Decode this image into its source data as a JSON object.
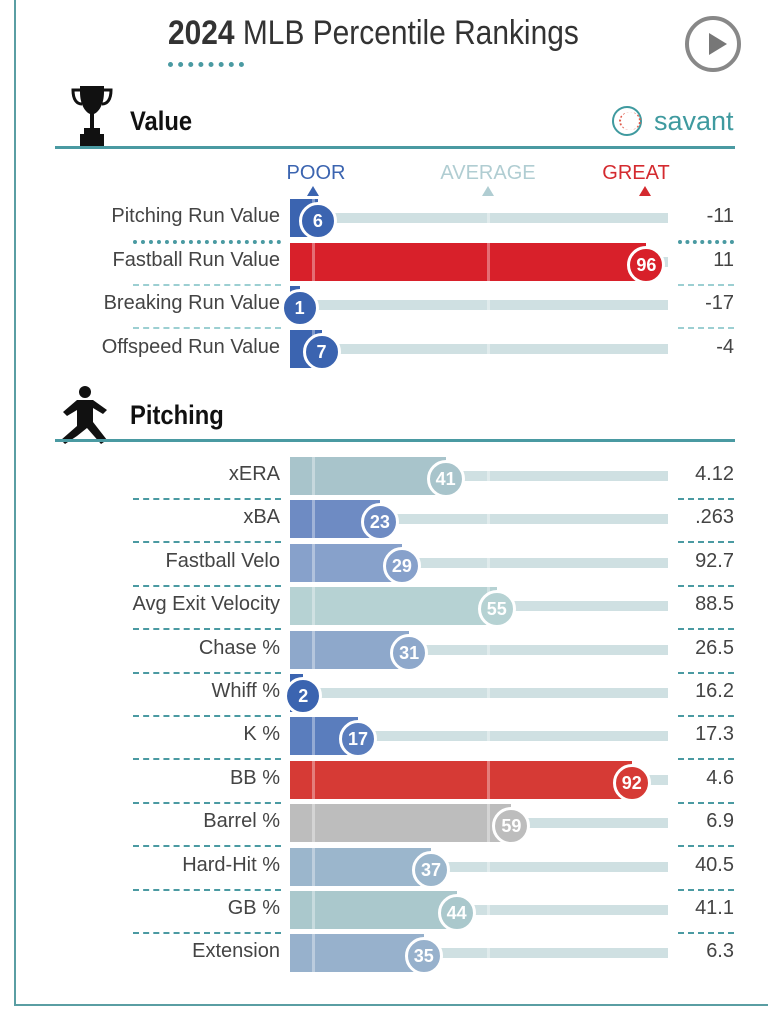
{
  "header": {
    "year": "2024",
    "title": "MLB Percentile Rankings"
  },
  "brand": "savant",
  "scale": {
    "poor": "POOR",
    "average": "AVERAGE",
    "great": "GREAT",
    "poor_color": "#3b64b0",
    "average_color": "#b0cdd2",
    "great_color": "#d42a2f"
  },
  "chart_data": [
    {
      "type": "bar",
      "title": "Value",
      "xlim": [
        0,
        100
      ],
      "rows": [
        {
          "label": "Pitching Run Value",
          "percentile": 6,
          "value": "-11",
          "color": "#3b64b0"
        },
        {
          "label": "Fastball Run Value",
          "percentile": 96,
          "value": "11",
          "color": "#d8202a"
        },
        {
          "label": "Breaking Run Value",
          "percentile": 1,
          "value": "-17",
          "color": "#3b64b0"
        },
        {
          "label": "Offspeed Run Value",
          "percentile": 7,
          "value": "-4",
          "color": "#3b64b0"
        }
      ]
    },
    {
      "type": "bar",
      "title": "Pitching",
      "xlim": [
        0,
        100
      ],
      "rows": [
        {
          "label": "xERA",
          "percentile": 41,
          "value": "4.12",
          "color": "#a8c4cb"
        },
        {
          "label": "xBA",
          "percentile": 23,
          "value": ".263",
          "color": "#6e8bc3"
        },
        {
          "label": "Fastball Velo",
          "percentile": 29,
          "value": "92.7",
          "color": "#87a1cb"
        },
        {
          "label": "Avg Exit Velocity",
          "percentile": 55,
          "value": "88.5",
          "color": "#b6d2d3"
        },
        {
          "label": "Chase %",
          "percentile": 31,
          "value": "26.5",
          "color": "#8ea8cb"
        },
        {
          "label": "Whiff %",
          "percentile": 2,
          "value": "16.2",
          "color": "#3b64b0"
        },
        {
          "label": "K %",
          "percentile": 17,
          "value": "17.3",
          "color": "#5a7dbd"
        },
        {
          "label": "BB %",
          "percentile": 92,
          "value": "4.6",
          "color": "#d63a35"
        },
        {
          "label": "Barrel %",
          "percentile": 59,
          "value": "6.9",
          "color": "#bdbdbd"
        },
        {
          "label": "Hard-Hit %",
          "percentile": 37,
          "value": "40.5",
          "color": "#9bb6cc"
        },
        {
          "label": "GB %",
          "percentile": 44,
          "value": "41.1",
          "color": "#aac8cc"
        },
        {
          "label": "Extension",
          "percentile": 35,
          "value": "6.3",
          "color": "#97b1cc"
        }
      ]
    }
  ]
}
